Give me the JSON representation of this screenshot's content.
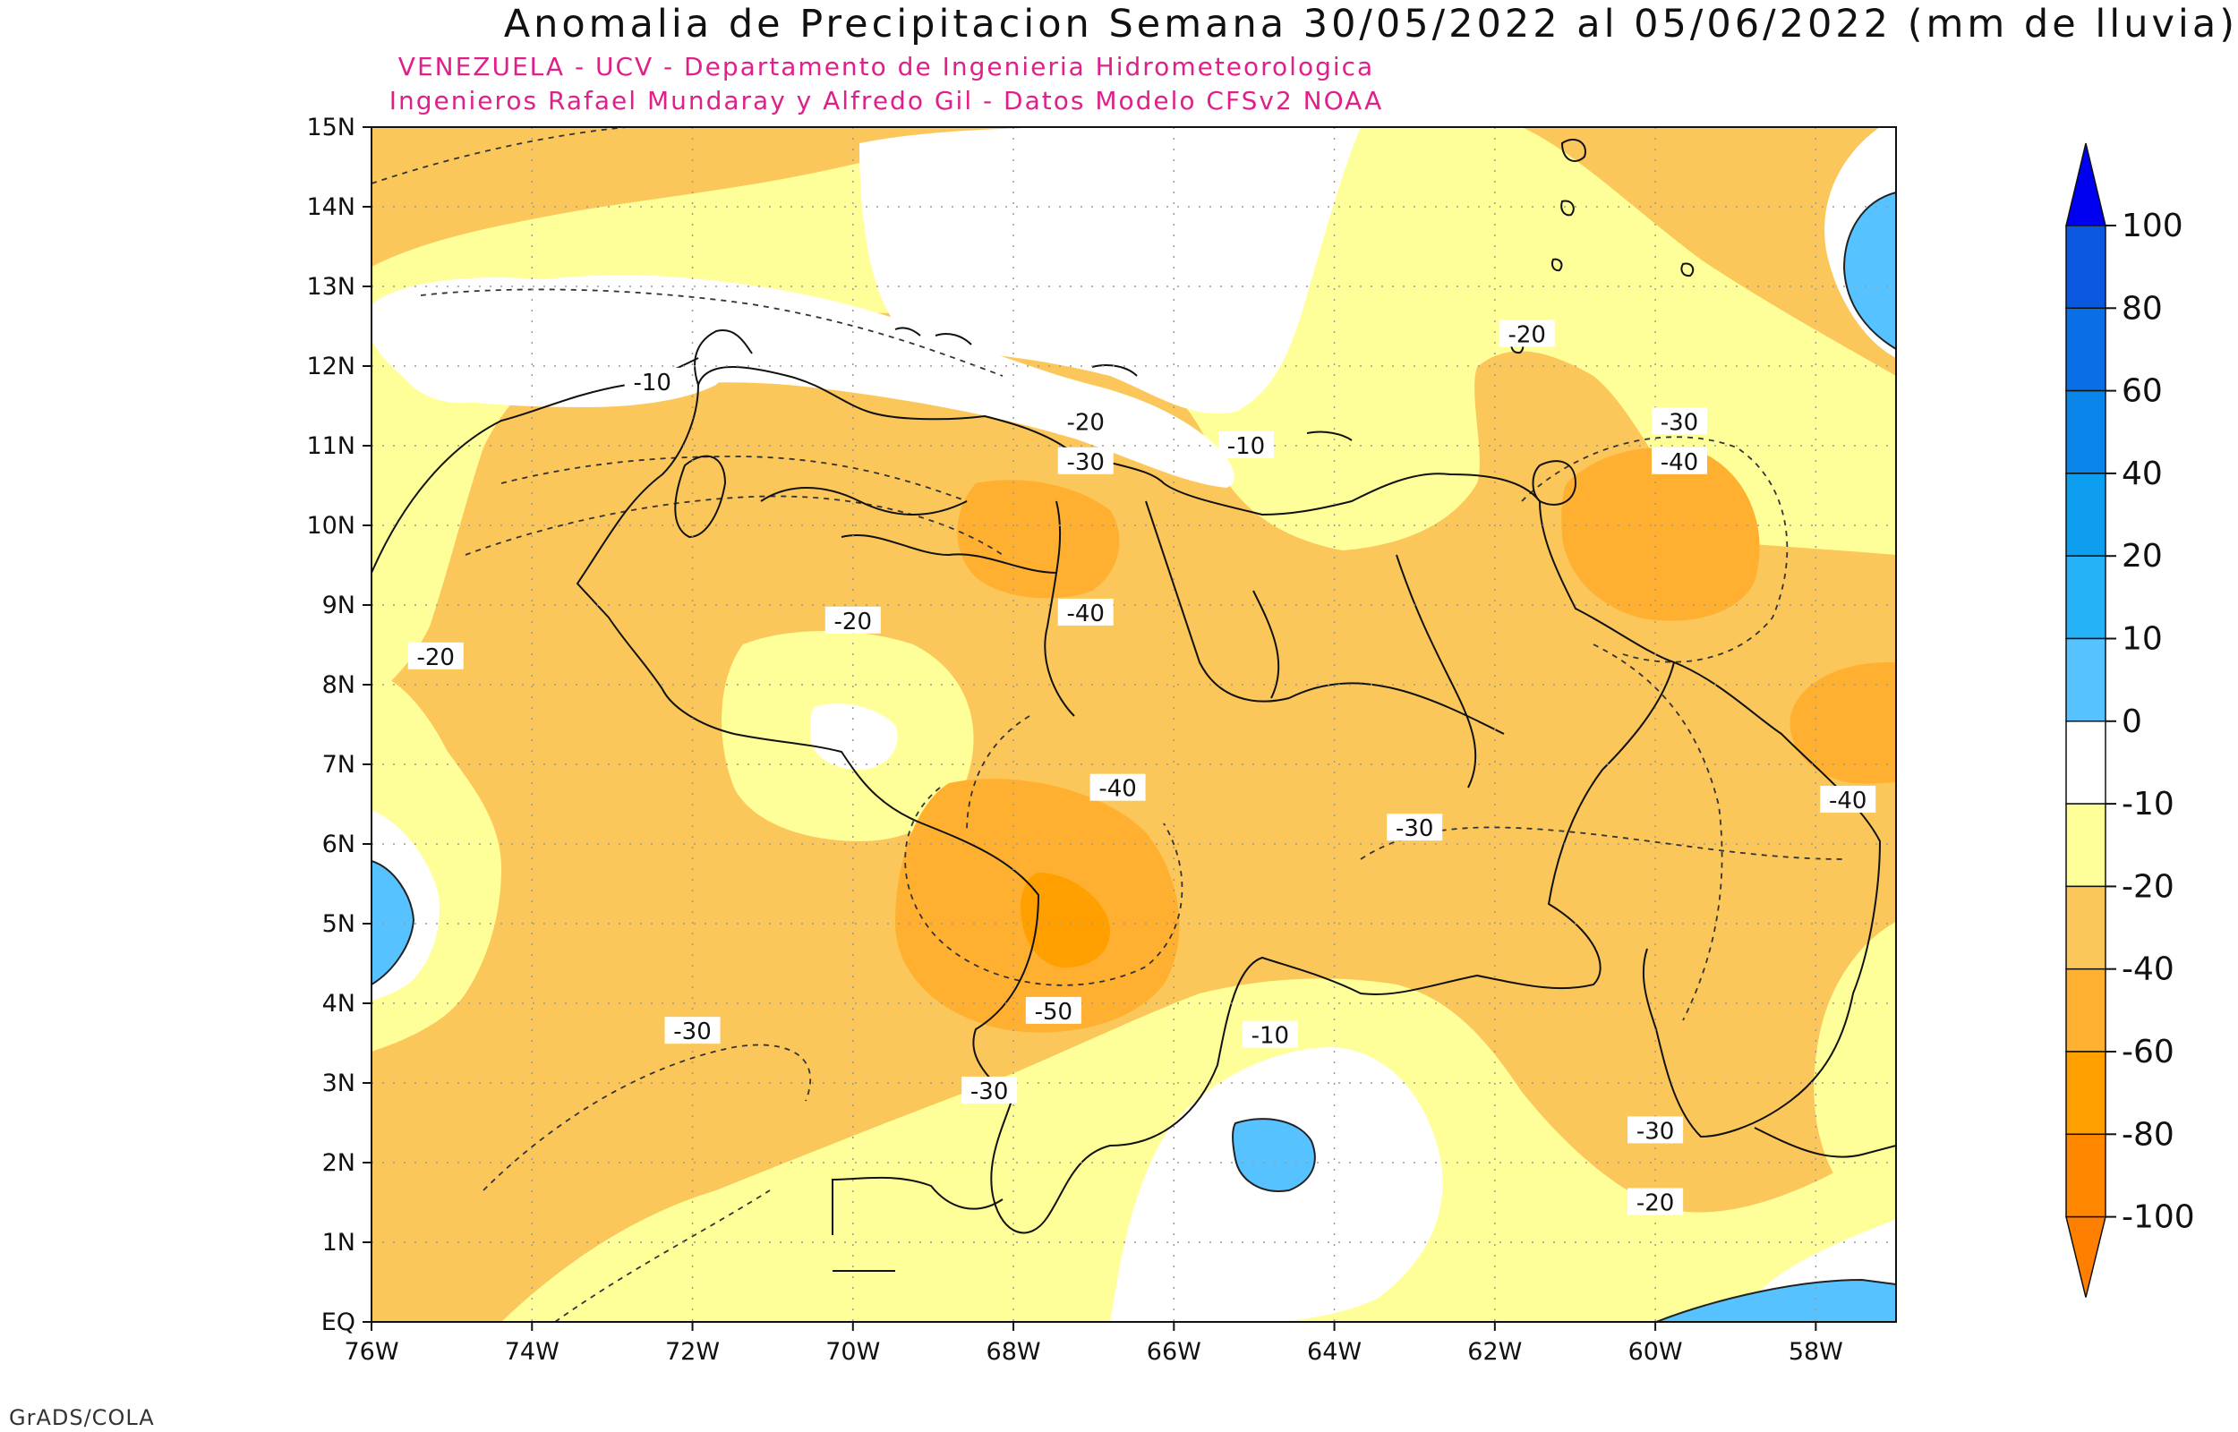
{
  "title": "Anomalia de Precipitacion Semana 30/05/2022 al 05/06/2022 (mm de lluvia)",
  "subtitle_line1": "VENEZUELA - UCV - Departamento de Ingenieria Hidrometeorologica",
  "subtitle_line2": "Ingenieros Rafael Mundaray y Alfredo Gil - Datos Modelo CFSv2 NOAA",
  "footer": "GrADS/COLA",
  "colors": {
    "bin_-100_-80": "#ff8800",
    "bin_-80_-60": "#ff9f00",
    "bin_-60_-40": "#ffb030",
    "bin_-40_-20": "#fbc75a",
    "bin_-20_-10": "#ffff99",
    "bin_-10_0": "#ffffff",
    "bin_0_10": "#56c2ff",
    "bin_10_20": "#25b2f7",
    "bin_20_40": "#0d9ef0",
    "bin_40_60": "#0a86ea",
    "bin_60_80": "#0a6ee6",
    "bin_80_100": "#0a58e0",
    "over_100": "#0000f0"
  },
  "map": {
    "lon_ticks": [
      "76W",
      "74W",
      "72W",
      "70W",
      "68W",
      "66W",
      "64W",
      "62W",
      "60W",
      "58W"
    ],
    "lat_ticks": [
      "EQ",
      "1N",
      "2N",
      "3N",
      "4N",
      "5N",
      "6N",
      "7N",
      "8N",
      "9N",
      "10N",
      "11N",
      "12N",
      "13N",
      "14N",
      "15N"
    ],
    "extent": {
      "lon_min": -76,
      "lon_max": -57,
      "lat_min": 0,
      "lat_max": 15
    }
  },
  "contour_labels": [
    {
      "text": "-10",
      "lon": -72.5,
      "lat": 11.8
    },
    {
      "text": "-20",
      "lon": -67.1,
      "lat": 11.3
    },
    {
      "text": "-30",
      "lon": -67.1,
      "lat": 10.8
    },
    {
      "text": "-10",
      "lon": -65.1,
      "lat": 11.0
    },
    {
      "text": "-20",
      "lon": -61.6,
      "lat": 12.4
    },
    {
      "text": "-30",
      "lon": -59.7,
      "lat": 11.3
    },
    {
      "text": "-40",
      "lon": -59.7,
      "lat": 10.8
    },
    {
      "text": "-40",
      "lon": -67.1,
      "lat": 8.9
    },
    {
      "text": "-20",
      "lon": -70.0,
      "lat": 8.8
    },
    {
      "text": "-20",
      "lon": -75.2,
      "lat": 8.35
    },
    {
      "text": "-40",
      "lon": -66.7,
      "lat": 6.7
    },
    {
      "text": "-30",
      "lon": -63.0,
      "lat": 6.2
    },
    {
      "text": "-40",
      "lon": -57.6,
      "lat": 6.55
    },
    {
      "text": "-50",
      "lon": -67.5,
      "lat": 3.9
    },
    {
      "text": "-30",
      "lon": -72.0,
      "lat": 3.65
    },
    {
      "text": "-30",
      "lon": -68.3,
      "lat": 2.9
    },
    {
      "text": "-10",
      "lon": -64.8,
      "lat": 3.6
    },
    {
      "text": "-30",
      "lon": -60.0,
      "lat": 2.4
    },
    {
      "text": "-20",
      "lon": -60.0,
      "lat": 1.5
    }
  ],
  "colorbar": {
    "labels": [
      "100",
      "80",
      "60",
      "40",
      "20",
      "10",
      "0",
      "-10",
      "-20",
      "-40",
      "-60",
      "-80",
      "-100"
    ]
  }
}
